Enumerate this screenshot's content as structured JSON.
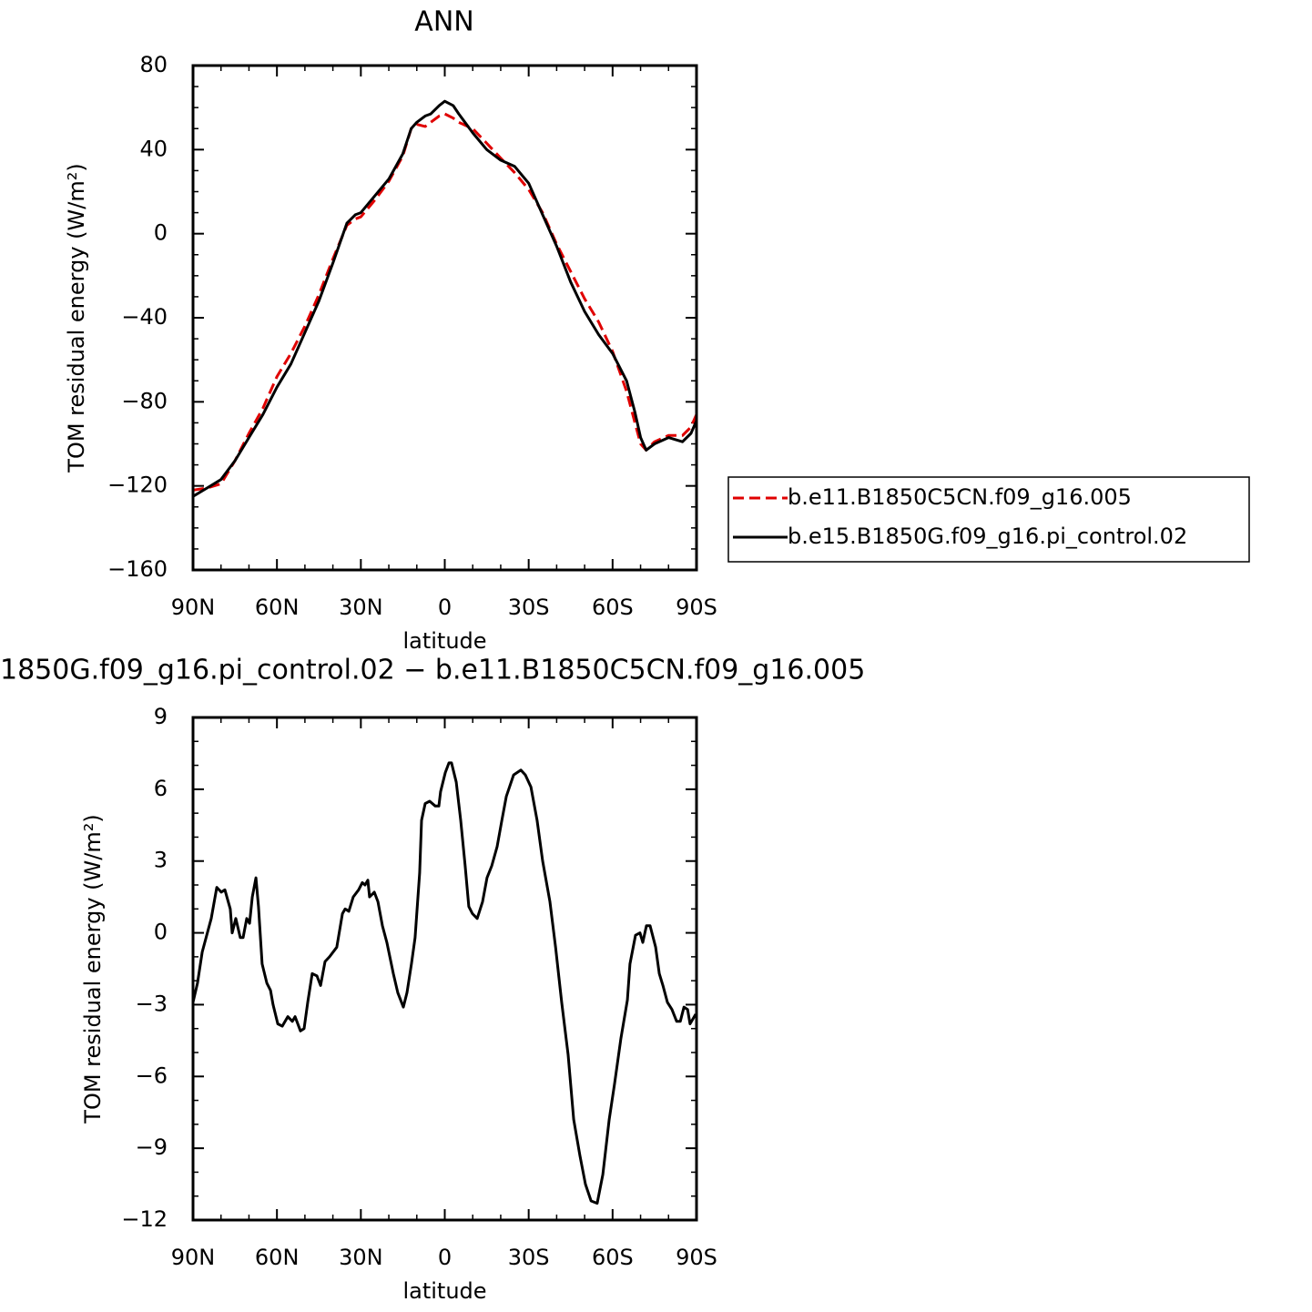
{
  "chart_data": [
    {
      "type": "line",
      "title": "ANN",
      "xlabel": "latitude",
      "ylabel": "TOM residual energy (W/m²)",
      "x": [
        90,
        85,
        80,
        75,
        70,
        65,
        60,
        55,
        50,
        45,
        40,
        35,
        32,
        30,
        25,
        20,
        15,
        12,
        10,
        7,
        5,
        2,
        0,
        -3,
        -5,
        -10,
        -15,
        -20,
        -25,
        -30,
        -35,
        -40,
        -45,
        -50,
        -55,
        -60,
        -65,
        -68,
        -70,
        -72,
        -75,
        -80,
        -85,
        -88,
        -90
      ],
      "series": [
        {
          "name": "b.e11.B1850C5CN.f09_g16.005",
          "color": "#e00000",
          "dash": "dashed",
          "values": [
            -122,
            -121,
            -119,
            -108,
            -95,
            -83,
            -68,
            -57,
            -44,
            -29,
            -12,
            4,
            7,
            8,
            16,
            25,
            37,
            50,
            52,
            51,
            53,
            56,
            57,
            55,
            53,
            50,
            43,
            36,
            29,
            21,
            10,
            -5,
            -18,
            -31,
            -42,
            -56,
            -75,
            -90,
            -100,
            -103,
            -99,
            -96,
            -96,
            -92,
            -86
          ]
        },
        {
          "name": "b.e15.B1850G.f09_g16.pi_control.02",
          "color": "#000000",
          "dash": "solid",
          "values": [
            -125,
            -121,
            -117,
            -108,
            -97,
            -86,
            -73,
            -62,
            -47,
            -32,
            -14,
            5,
            9,
            10,
            18,
            26,
            38,
            50,
            53,
            56,
            57,
            61,
            63,
            61,
            57,
            48,
            40,
            35,
            32,
            24,
            9,
            -6,
            -23,
            -37,
            -48,
            -57,
            -70,
            -85,
            -97,
            -103,
            -100,
            -97,
            -99,
            -95,
            -89
          ]
        }
      ],
      "xlim": [
        90,
        -90
      ],
      "xticks": [
        {
          "value": 90,
          "label": "90N"
        },
        {
          "value": 60,
          "label": "60N"
        },
        {
          "value": 30,
          "label": "30N"
        },
        0,
        {
          "value": -30,
          "label": "30S"
        },
        {
          "value": -60,
          "label": "60S"
        },
        {
          "value": -90,
          "label": "90S"
        }
      ],
      "xminorticks": [
        80,
        70,
        50,
        40,
        20,
        10,
        -10,
        -20,
        -40,
        -50,
        -70,
        -80
      ],
      "ylim": [
        -160,
        80
      ],
      "yticks": [
        80,
        40,
        0,
        {
          "value": -40,
          "label": "−40"
        },
        {
          "value": -80,
          "label": "−80"
        },
        {
          "value": -120,
          "label": "−120"
        },
        {
          "value": -160,
          "label": "−160"
        }
      ],
      "yminorticks": [
        70,
        60,
        50,
        30,
        20,
        10,
        -10,
        -20,
        -30,
        -50,
        -60,
        -70,
        -90,
        -100,
        -110,
        -130,
        -140,
        -150
      ],
      "legend": "outside-right"
    },
    {
      "type": "line",
      "title": "1850G.f09_g16.pi_control.02 − b.e11.B1850C5CN.f09_g16.005",
      "xlabel": "latitude",
      "ylabel": "TOM residual energy (W/m²)",
      "x": [
        90,
        88.4,
        86.7,
        83.5,
        81.5,
        79.9,
        78.6,
        76.7,
        76.0,
        74.7,
        73.1,
        72.1,
        70.8,
        69.8,
        68.8,
        67.5,
        66.6,
        65.3,
        63.6,
        62.3,
        61.4,
        59.7,
        58.1,
        56.1,
        54.5,
        53.5,
        51.6,
        50.3,
        49.0,
        47.4,
        45.7,
        44.4,
        42.8,
        41.2,
        38.6,
        36.6,
        35.6,
        34.3,
        32.7,
        30.8,
        29.5,
        28.5,
        27.5,
        26.9,
        25.2,
        23.9,
        22.3,
        20.7,
        18.4,
        16.8,
        14.8,
        13.5,
        11.9,
        10.6,
        9.0,
        8.3,
        7.0,
        5.4,
        3.4,
        2.1,
        1.5,
        -0.2,
        -1.5,
        -2.4,
        -4.1,
        -5.7,
        -7.3,
        -8.6,
        -9.9,
        -11.6,
        -13.5,
        -15.1,
        -16.8,
        -18.7,
        -20.4,
        -22.0,
        -24.6,
        -27.2,
        -28.8,
        -30.8,
        -33.0,
        -35.0,
        -37.6,
        -39.6,
        -41.8,
        -44.1,
        -46.1,
        -48.3,
        -50.3,
        -52.3,
        -54.5,
        -56.5,
        -58.8,
        -60.7,
        -63.0,
        -65.3,
        -66.2,
        -68.2,
        -69.8,
        -70.8,
        -72.1,
        -73.4,
        -75.4,
        -76.7,
        -78.0,
        -79.6,
        -81.2,
        -82.9,
        -84.2,
        -85.5,
        -86.8,
        -87.7,
        -88.7,
        -89.7
      ],
      "series": [
        {
          "color": "#000000",
          "dash": "solid",
          "values": [
            -2.9,
            -2.1,
            -0.8,
            0.6,
            1.9,
            1.7,
            1.8,
            1.0,
            0,
            0.6,
            -0.2,
            -0.2,
            0.6,
            0.4,
            1.5,
            2.3,
            1.1,
            -1.3,
            -2.1,
            -2.4,
            -3.0,
            -3.8,
            -3.9,
            -3.5,
            -3.7,
            -3.5,
            -4.1,
            -4.0,
            -2.9,
            -1.7,
            -1.8,
            -2.2,
            -1.2,
            -1.0,
            -0.6,
            0.8,
            1.0,
            0.9,
            1.5,
            1.8,
            2.1,
            2.0,
            2.2,
            1.5,
            1.7,
            1.3,
            0.3,
            -0.4,
            -1.7,
            -2.5,
            -3.1,
            -2.5,
            -1.3,
            -0.2,
            2.5,
            4.7,
            5.4,
            5.5,
            5.3,
            5.3,
            5.9,
            6.7,
            7.1,
            7.1,
            6.3,
            4.7,
            2.8,
            1.1,
            0.8,
            0.6,
            1.3,
            2.3,
            2.8,
            3.6,
            4.7,
            5.7,
            6.6,
            6.8,
            6.6,
            6.1,
            4.7,
            3.0,
            1.3,
            -0.6,
            -2.9,
            -5.1,
            -7.8,
            -9.3,
            -10.5,
            -11.2,
            -11.3,
            -10.1,
            -7.8,
            -6.3,
            -4.4,
            -2.8,
            -1.3,
            -0.1,
            0,
            -0.4,
            0.3,
            0.3,
            -0.6,
            -1.7,
            -2.2,
            -2.9,
            -3.2,
            -3.7,
            -3.7,
            -3.1,
            -3.2,
            -3.8,
            -3.6,
            -3.4
          ]
        }
      ],
      "xlim": [
        90,
        -90
      ],
      "xticks": [
        {
          "value": 90,
          "label": "90N"
        },
        {
          "value": 60,
          "label": "60N"
        },
        {
          "value": 30,
          "label": "30N"
        },
        0,
        {
          "value": -30,
          "label": "30S"
        },
        {
          "value": -60,
          "label": "60S"
        },
        {
          "value": -90,
          "label": "90S"
        }
      ],
      "xminorticks": [
        80,
        70,
        50,
        40,
        20,
        10,
        -10,
        -20,
        -40,
        -50,
        -70,
        -80
      ],
      "ylim": [
        -12,
        9
      ],
      "yticks": [
        9,
        6,
        3,
        0,
        {
          "value": -3,
          "label": "−3"
        },
        {
          "value": -6,
          "label": "−6"
        },
        {
          "value": -9,
          "label": "−9"
        },
        {
          "value": -12,
          "label": "−12"
        }
      ],
      "yminorticks": [
        8,
        7,
        5,
        4,
        2,
        1,
        -1,
        -2,
        -4,
        -5,
        -7,
        -8,
        -10,
        -11
      ]
    }
  ]
}
